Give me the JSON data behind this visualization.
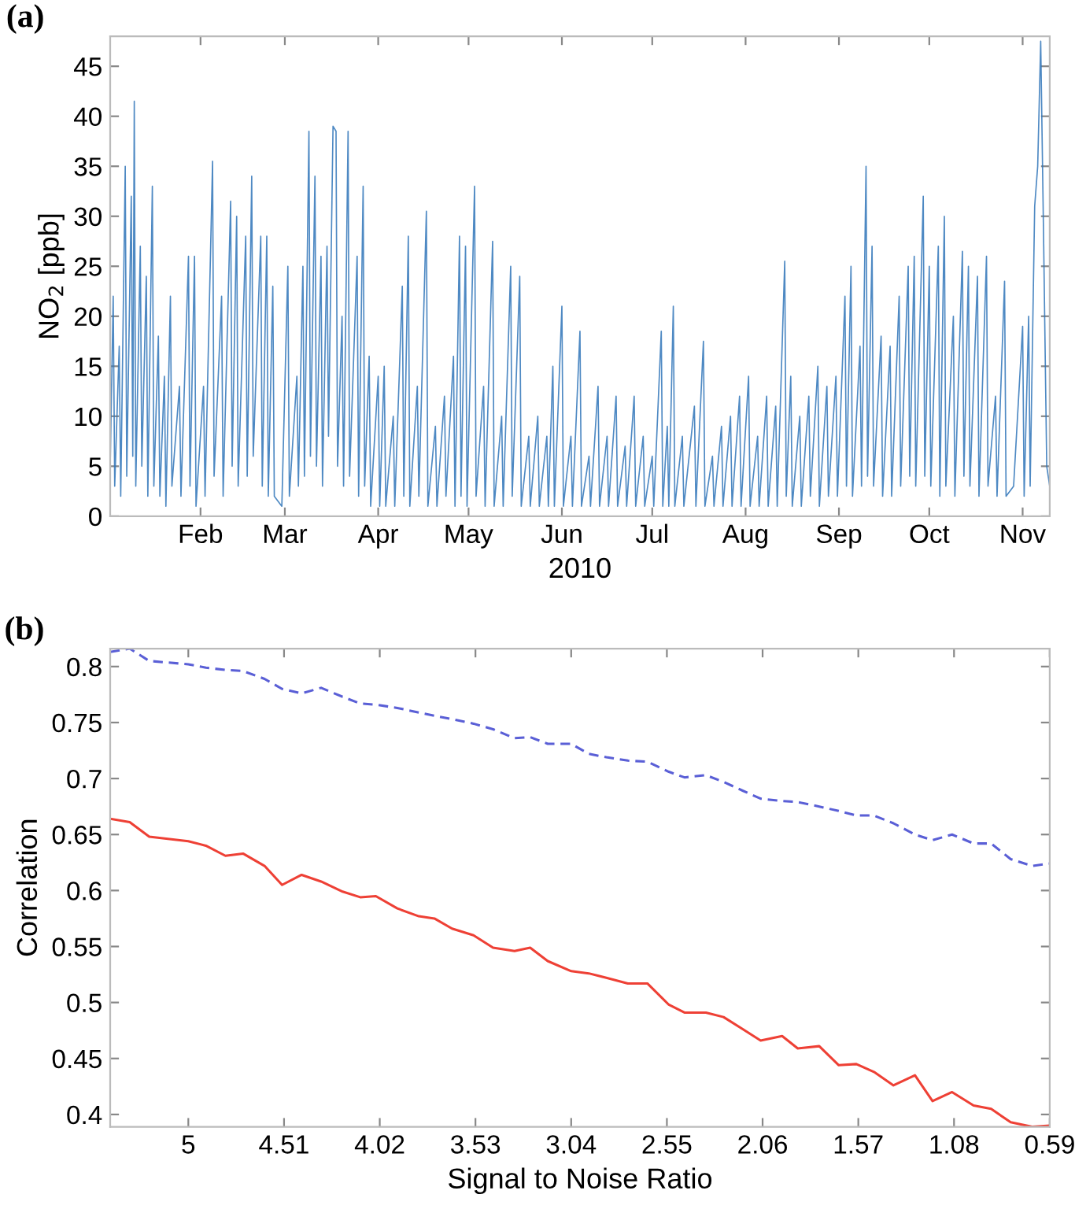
{
  "chart_data": [
    {
      "type": "line",
      "xlabel": "2010",
      "ylabel": "NO$_{2}$ [ppb]",
      "annotations": [
        "(a)"
      ],
      "xlim": [
        "2010-01-02",
        "2010-11-10"
      ],
      "ylim": [
        0,
        48
      ],
      "yticks": [
        0,
        5,
        10,
        15,
        20,
        25,
        30,
        35,
        40,
        45
      ],
      "xticks": [
        {
          "value": "2010-02-01",
          "label": "Feb"
        },
        {
          "value": "2010-03-01",
          "label": "Mar"
        },
        {
          "value": "2010-04-01",
          "label": "Apr"
        },
        {
          "value": "2010-05-01",
          "label": "May"
        },
        {
          "value": "2010-06-01",
          "label": "Jun"
        },
        {
          "value": "2010-07-01",
          "label": "Jul"
        },
        {
          "value": "2010-08-01",
          "label": "Aug"
        },
        {
          "value": "2010-09-01",
          "label": "Sep"
        },
        {
          "value": "2010-10-01",
          "label": "Oct"
        },
        {
          "value": "2010-11-01",
          "label": "Nov"
        }
      ],
      "grid": false,
      "legend": false,
      "series": [
        {
          "color": "#2f74b8",
          "x": [
            "2010-01-02",
            "2010-01-03",
            "2010-01-03T12:00",
            "2010-01-05",
            "2010-01-05T12:00",
            "2010-01-07",
            "2010-01-07T12:00",
            "2010-01-09",
            "2010-01-09T12:00",
            "2010-01-10",
            "2010-01-10T12:00",
            "2010-01-12",
            "2010-01-12T12:00",
            "2010-01-14",
            "2010-01-14T12:00",
            "2010-01-16",
            "2010-01-16T12:00",
            "2010-01-18",
            "2010-01-18T12:00",
            "2010-01-20",
            "2010-01-20T12:00",
            "2010-01-22",
            "2010-01-22T12:00",
            "2010-01-25",
            "2010-01-25T12:00",
            "2010-01-28",
            "2010-01-28T12:00",
            "2010-01-30",
            "2010-01-30T12:00",
            "2010-02-02",
            "2010-02-02T12:00",
            "2010-02-05",
            "2010-02-05T12:00",
            "2010-02-08",
            "2010-02-08T12:00",
            "2010-02-11",
            "2010-02-11T12:00",
            "2010-02-13",
            "2010-02-13T12:00",
            "2010-02-16",
            "2010-02-16T12:00",
            "2010-02-18",
            "2010-02-18T12:00",
            "2010-02-21",
            "2010-02-21T12:00",
            "2010-02-23",
            "2010-02-23T12:00",
            "2010-02-25",
            "2010-02-25T12:00",
            "2010-02-28",
            "2010-03-02",
            "2010-03-02T12:00",
            "2010-03-05",
            "2010-03-05T12:00",
            "2010-03-07",
            "2010-03-07T12:00",
            "2010-03-09",
            "2010-03-09T12:00",
            "2010-03-11",
            "2010-03-11T12:00",
            "2010-03-13",
            "2010-03-13T12:00",
            "2010-03-15",
            "2010-03-15T12:00",
            "2010-03-17",
            "2010-03-18",
            "2010-03-18T12:00",
            "2010-03-20",
            "2010-03-20T12:00",
            "2010-03-22",
            "2010-03-22T12:00",
            "2010-03-25",
            "2010-03-25T12:00",
            "2010-03-27",
            "2010-03-27T12:00",
            "2010-03-29",
            "2010-03-29T12:00",
            "2010-04-01",
            "2010-04-01T12:00",
            "2010-04-03",
            "2010-04-03T12:00",
            "2010-04-06",
            "2010-04-06T12:00",
            "2010-04-09",
            "2010-04-09T12:00",
            "2010-04-11",
            "2010-04-11T12:00",
            "2010-04-14",
            "2010-04-14T12:00",
            "2010-04-17",
            "2010-04-17T12:00",
            "2010-04-20",
            "2010-04-20T12:00",
            "2010-04-23",
            "2010-04-23T12:00",
            "2010-04-26",
            "2010-04-26T12:00",
            "2010-04-28",
            "2010-04-28T12:00",
            "2010-04-30",
            "2010-04-30T12:00",
            "2010-05-03",
            "2010-05-03T12:00",
            "2010-05-06",
            "2010-05-06T12:00",
            "2010-05-09",
            "2010-05-09T12:00",
            "2010-05-12",
            "2010-05-12T12:00",
            "2010-05-15",
            "2010-05-15T12:00",
            "2010-05-18",
            "2010-05-18T12:00",
            "2010-05-21",
            "2010-05-21T12:00",
            "2010-05-24",
            "2010-05-24T12:00",
            "2010-05-27",
            "2010-05-27T12:00",
            "2010-05-29",
            "2010-05-29T12:00",
            "2010-06-01",
            "2010-06-01T12:00",
            "2010-06-04",
            "2010-06-04T12:00",
            "2010-06-07",
            "2010-06-07T12:00",
            "2010-06-10",
            "2010-06-10T12:00",
            "2010-06-13",
            "2010-06-13T12:00",
            "2010-06-16",
            "2010-06-16T12:00",
            "2010-06-19",
            "2010-06-19T12:00",
            "2010-06-22",
            "2010-06-22T12:00",
            "2010-06-25",
            "2010-06-25T12:00",
            "2010-06-28",
            "2010-06-28T12:00",
            "2010-07-01",
            "2010-07-01T12:00",
            "2010-07-04",
            "2010-07-04T12:00",
            "2010-07-06",
            "2010-07-06T12:00",
            "2010-07-08",
            "2010-07-08T12:00",
            "2010-07-11",
            "2010-07-11T12:00",
            "2010-07-15",
            "2010-07-15T12:00",
            "2010-07-18",
            "2010-07-18T12:00",
            "2010-07-21",
            "2010-07-21T12:00",
            "2010-07-24",
            "2010-07-24T12:00",
            "2010-07-27",
            "2010-07-27T12:00",
            "2010-07-30",
            "2010-07-30T12:00",
            "2010-08-02",
            "2010-08-02T12:00",
            "2010-08-05",
            "2010-08-05T12:00",
            "2010-08-08",
            "2010-08-08T12:00",
            "2010-08-11",
            "2010-08-11T12:00",
            "2010-08-14",
            "2010-08-14T12:00",
            "2010-08-16",
            "2010-08-16T12:00",
            "2010-08-19",
            "2010-08-19T12:00",
            "2010-08-22",
            "2010-08-22T12:00",
            "2010-08-25",
            "2010-08-25T12:00",
            "2010-08-28",
            "2010-08-28T12:00",
            "2010-08-31",
            "2010-08-31T12:00",
            "2010-09-03",
            "2010-09-03T12:00",
            "2010-09-05",
            "2010-09-05T12:00",
            "2010-09-08",
            "2010-09-08T12:00",
            "2010-09-10",
            "2010-09-10T12:00",
            "2010-09-12",
            "2010-09-12T12:00",
            "2010-09-15",
            "2010-09-15T12:00",
            "2010-09-18",
            "2010-09-18T12:00",
            "2010-09-21",
            "2010-09-21T12:00",
            "2010-09-24",
            "2010-09-24T12:00",
            "2010-09-26",
            "2010-09-26T12:00",
            "2010-09-29",
            "2010-09-29T12:00",
            "2010-10-01",
            "2010-10-01T12:00",
            "2010-10-04",
            "2010-10-04T12:00",
            "2010-10-06",
            "2010-10-06T12:00",
            "2010-10-09",
            "2010-10-09T12:00",
            "2010-10-12",
            "2010-10-12T12:00",
            "2010-10-14",
            "2010-10-14T12:00",
            "2010-10-17",
            "2010-10-17T12:00",
            "2010-10-20",
            "2010-10-20T12:00",
            "2010-10-23",
            "2010-10-23T12:00",
            "2010-10-26",
            "2010-10-26T12:00",
            "2010-10-29",
            "2010-11-01",
            "2010-11-01T12:00",
            "2010-11-03",
            "2010-11-03T12:00",
            "2010-11-05",
            "2010-11-06",
            "2010-11-07",
            "2010-11-08",
            "2010-11-09",
            "2010-11-10"
          ],
          "values": [
            5,
            22,
            3,
            17,
            2,
            35,
            4,
            32,
            6,
            41.5,
            3,
            27,
            5,
            24,
            2,
            33,
            3,
            18,
            2,
            14,
            1,
            22,
            3,
            13,
            2,
            26,
            3,
            26,
            1,
            13,
            2,
            35.5,
            4,
            22,
            2,
            31.5,
            5,
            30,
            3,
            28,
            4,
            34,
            6,
            28,
            3,
            28,
            2,
            23,
            2,
            1,
            25,
            2,
            14,
            3,
            25,
            4,
            38.5,
            6,
            34,
            5,
            26,
            3,
            27,
            8,
            39,
            38.5,
            5,
            20,
            3,
            38.5,
            4,
            26,
            2,
            33,
            3,
            16,
            1,
            14,
            1,
            15,
            1,
            10,
            1,
            23,
            2,
            28,
            1,
            13,
            2,
            30.5,
            1,
            9,
            1,
            12,
            2,
            16,
            1,
            28,
            2,
            27,
            1,
            33,
            2,
            13,
            1,
            27.5,
            1,
            10,
            1,
            25,
            2,
            24,
            1,
            8,
            1,
            10,
            1,
            8,
            1,
            15,
            1,
            21,
            1,
            8,
            1,
            18.5,
            1,
            6,
            1,
            13,
            1,
            8,
            1,
            12,
            1,
            7,
            1,
            12,
            1,
            8,
            1,
            6,
            1,
            18.5,
            1,
            9,
            1,
            21,
            1,
            8,
            1,
            11,
            1,
            17.5,
            1,
            6,
            1,
            9,
            1,
            10,
            1,
            12,
            1,
            14,
            1,
            8,
            1,
            12,
            1,
            11,
            1,
            25.5,
            2,
            14,
            1,
            10,
            1,
            12,
            2,
            15,
            1,
            13,
            2,
            14,
            2,
            22,
            3,
            25,
            2,
            17,
            3,
            35,
            4,
            27,
            3,
            18,
            2,
            17,
            2,
            22,
            3,
            25,
            4,
            26,
            3,
            32,
            4,
            25,
            3,
            27,
            2,
            30,
            3,
            20,
            2,
            26.5,
            4,
            25,
            3,
            24,
            2,
            26,
            3,
            12,
            2,
            23.5,
            2,
            3,
            19,
            2,
            20,
            3,
            31,
            35,
            47.5,
            27,
            5,
            3
          ]
        }
      ]
    },
    {
      "type": "line",
      "xlabel": "Signal to Noise Ratio",
      "ylabel": "Correlation",
      "annotations": [
        "(b)"
      ],
      "xlim": [
        5.4,
        0.59
      ],
      "xticks": [
        5,
        4.51,
        4.02,
        3.53,
        3.04,
        2.55,
        2.06,
        1.57,
        1.08,
        0.59
      ],
      "ylim": [
        0.389,
        0.816
      ],
      "yticks": [
        0.4,
        0.45,
        0.5,
        0.55,
        0.6,
        0.65,
        0.7,
        0.75,
        0.8
      ],
      "grid": false,
      "legend": false,
      "x": [
        5.4,
        5.3,
        5.2,
        5.0,
        4.91,
        4.81,
        4.72,
        4.61,
        4.52,
        4.42,
        4.32,
        4.21,
        4.12,
        4.04,
        3.93,
        3.82,
        3.74,
        3.65,
        3.54,
        3.44,
        3.33,
        3.25,
        3.16,
        3.04,
        2.95,
        2.86,
        2.75,
        2.65,
        2.54,
        2.46,
        2.35,
        2.26,
        2.16,
        2.07,
        1.96,
        1.88,
        1.77,
        1.67,
        1.58,
        1.49,
        1.39,
        1.28,
        1.19,
        1.09,
        0.98,
        0.89,
        0.79,
        0.68,
        0.59
      ],
      "series": [
        {
          "color": "#5a5fd6",
          "line_style": "dashed",
          "values": [
            0.813,
            0.816,
            0.805,
            0.802,
            0.799,
            0.797,
            0.796,
            0.789,
            0.78,
            0.776,
            0.781,
            0.773,
            0.767,
            0.766,
            0.763,
            0.759,
            0.756,
            0.753,
            0.749,
            0.744,
            0.736,
            0.737,
            0.731,
            0.731,
            0.722,
            0.719,
            0.716,
            0.715,
            0.706,
            0.701,
            0.703,
            0.697,
            0.689,
            0.682,
            0.68,
            0.679,
            0.675,
            0.671,
            0.667,
            0.667,
            0.66,
            0.65,
            0.645,
            0.65,
            0.642,
            0.642,
            0.628,
            0.622,
            0.624
          ]
        },
        {
          "color": "#ee4035",
          "line_style": "solid",
          "values": [
            0.664,
            0.661,
            0.648,
            0.644,
            0.64,
            0.631,
            0.633,
            0.622,
            0.605,
            0.614,
            0.608,
            0.599,
            0.594,
            0.595,
            0.584,
            0.577,
            0.575,
            0.566,
            0.56,
            0.549,
            0.546,
            0.549,
            0.537,
            0.528,
            0.526,
            0.522,
            0.517,
            0.517,
            0.498,
            0.491,
            0.491,
            0.487,
            0.476,
            0.466,
            0.47,
            0.459,
            0.461,
            0.444,
            0.445,
            0.438,
            0.426,
            0.435,
            0.412,
            0.42,
            0.408,
            0.405,
            0.393,
            0.389,
            0.39
          ]
        }
      ]
    }
  ]
}
